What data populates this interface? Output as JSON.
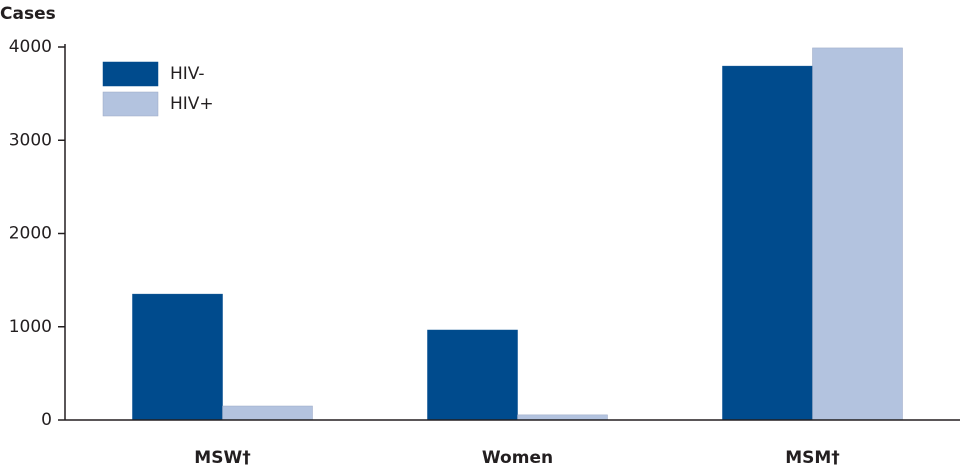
{
  "chart_data": {
    "type": "bar",
    "y_label": "Cases",
    "categories": [
      "MSW†",
      "Women",
      "MSM†"
    ],
    "series": [
      {
        "name": "HIV-",
        "color": "#004b8d",
        "values": [
          1350,
          965,
          3795
        ]
      },
      {
        "name": "HIV+",
        "color": "#b3c3df",
        "values": [
          150,
          55,
          3990
        ]
      }
    ],
    "ylim": [
      0,
      4000
    ],
    "yticks": [
      0,
      1000,
      2000,
      3000,
      4000
    ],
    "grid": false,
    "legend": "upper left"
  }
}
